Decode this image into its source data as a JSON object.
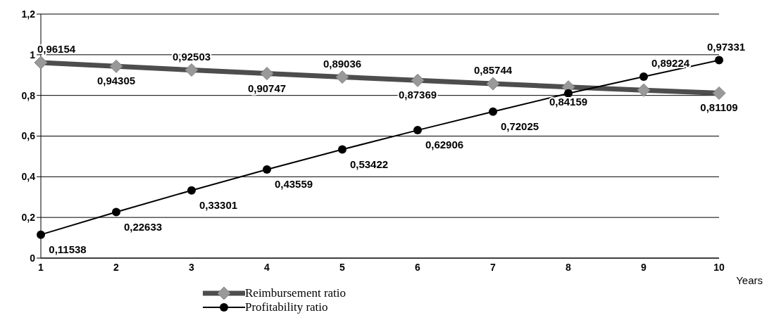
{
  "chart_data": {
    "type": "line",
    "xlabel": "Years",
    "categories": [
      "1",
      "2",
      "3",
      "4",
      "5",
      "6",
      "7",
      "8",
      "9",
      "10"
    ],
    "series": [
      {
        "name": "Reimbursement ratio",
        "color": "#4d4d4d",
        "marker": "diamond",
        "values": [
          0.96154,
          0.94305,
          0.92503,
          0.90747,
          0.89036,
          0.87369,
          0.85744,
          0.84159,
          0.826,
          0.81109
        ],
        "value_labels": [
          "0,96154",
          "0,94305",
          "0,92503",
          "0,90747",
          "0,89036",
          "0,87369",
          "0,85744",
          "0,84159",
          null,
          "0,81109"
        ]
      },
      {
        "name": "Profitability ratio",
        "color": "#000000",
        "marker": "circle",
        "values": [
          0.11538,
          0.22633,
          0.33301,
          0.43559,
          0.53422,
          0.62906,
          0.72025,
          0.81,
          0.89224,
          0.97331
        ],
        "value_labels": [
          "0,11538",
          "0,22633",
          "0,33301",
          "0,43559",
          "0,53422",
          "0,62906",
          "0,72025",
          null,
          "0,89224",
          "0,97331"
        ]
      }
    ],
    "ylim": [
      0,
      1.2
    ],
    "yticks": [
      {
        "value": 0,
        "label": "0"
      },
      {
        "value": 0.2,
        "label": "0,2"
      },
      {
        "value": 0.4,
        "label": "0,4"
      },
      {
        "value": 0.6,
        "label": "0,6"
      },
      {
        "value": 0.8,
        "label": "0,8"
      },
      {
        "value": 1,
        "label": "1"
      },
      {
        "value": 1.2,
        "label": "1,2"
      }
    ],
    "grid": "y",
    "legend": "bottom",
    "line_style": "solid"
  }
}
